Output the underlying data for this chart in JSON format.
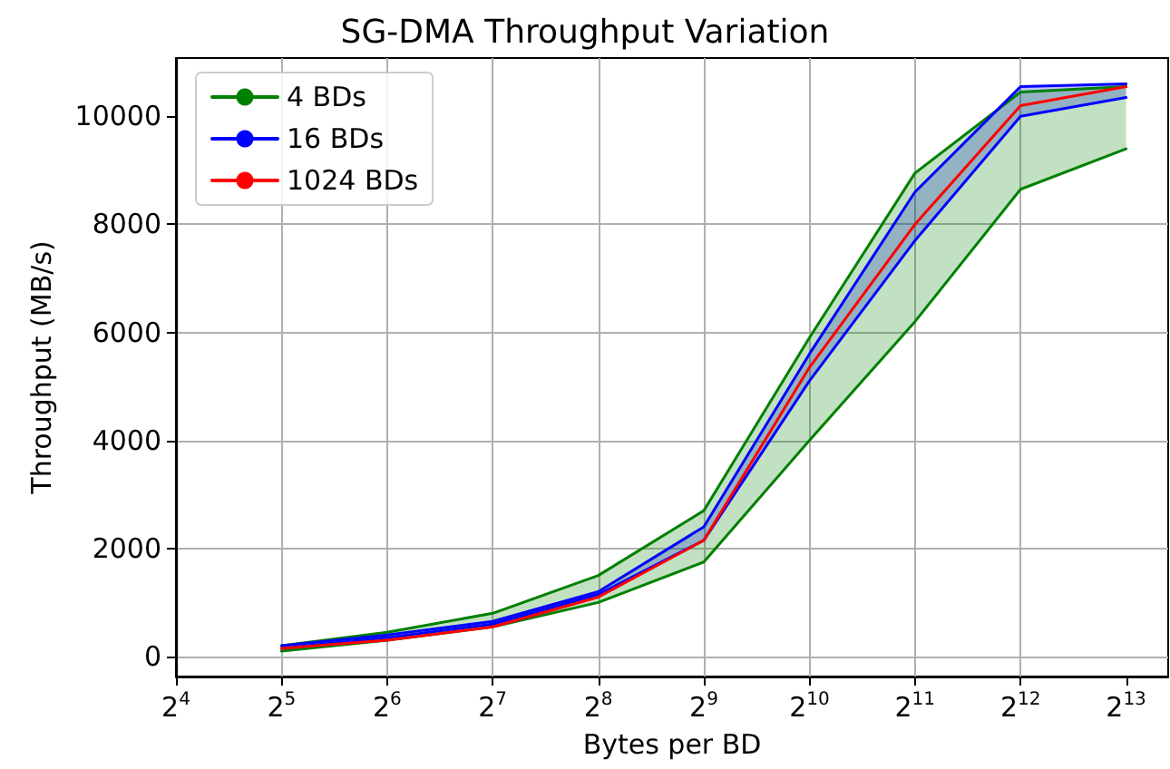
{
  "chart_data": {
    "type": "line",
    "title": "SG-DMA Throughput Variation",
    "xlabel": "Bytes per BD",
    "ylabel": "Throughput (MB/s)",
    "x": [
      32,
      64,
      128,
      256,
      512,
      1024,
      2048,
      4096,
      8192
    ],
    "series": [
      {
        "name": "4 BDs",
        "color": "#008000",
        "values": [
          200,
          450,
          800,
          1500,
          2700,
          5900,
          8950,
          10450,
          10550
        ],
        "lower": [
          100,
          300,
          550,
          1000,
          1750,
          4000,
          6200,
          8650,
          9400
        ],
        "upper": [
          200,
          450,
          800,
          1500,
          2700,
          5900,
          8950,
          10450,
          10550
        ]
      },
      {
        "color": "#008000",
        "values": [
          100,
          300,
          550,
          1000,
          1750,
          4000,
          6200,
          8650,
          9400
        ]
      },
      {
        "name": "16 BDs",
        "color": "#0000ff",
        "values": [
          200,
          400,
          650,
          1200,
          2400,
          5600,
          8600,
          10550,
          10600
        ],
        "lower": [
          150,
          350,
          600,
          1150,
          2150,
          5100,
          7700,
          10000,
          10350
        ],
        "upper": [
          200,
          400,
          650,
          1200,
          2400,
          5600,
          8600,
          10550,
          10600
        ]
      },
      {
        "color": "#0000ff",
        "values": [
          150,
          350,
          600,
          1150,
          2150,
          5100,
          7700,
          10000,
          10350
        ]
      },
      {
        "name": "1024 BDs",
        "color": "#ff0000",
        "values": [
          150,
          300,
          550,
          1100,
          2150,
          5350,
          8000,
          10200,
          10550
        ]
      }
    ],
    "log": "x",
    "xlim": [
      16,
      10800
    ],
    "ylim": [
      -370,
      11080
    ],
    "xticks": [
      {
        "value": 16,
        "label": "2$^{4}$"
      },
      {
        "value": 32,
        "label": "2$^{5}$"
      },
      {
        "value": 64,
        "label": "2$^{6}$"
      },
      {
        "value": 128,
        "label": "2$^{7}$"
      },
      {
        "value": 256,
        "label": "2$^{8}$"
      },
      {
        "value": 512,
        "label": "2$^{9}$"
      },
      {
        "value": 1024,
        "label": "2$^{10}$"
      },
      {
        "value": 2048,
        "label": "2$^{11}$"
      },
      {
        "value": 4096,
        "label": "2$^{12}$"
      },
      {
        "value": 8192,
        "label": "2$^{13}$"
      }
    ],
    "yticks": [
      0,
      2000,
      4000,
      6000,
      8000,
      10000
    ],
    "grid": true,
    "legend": "top left",
    "marker": "none",
    "line_style": "solid"
  }
}
